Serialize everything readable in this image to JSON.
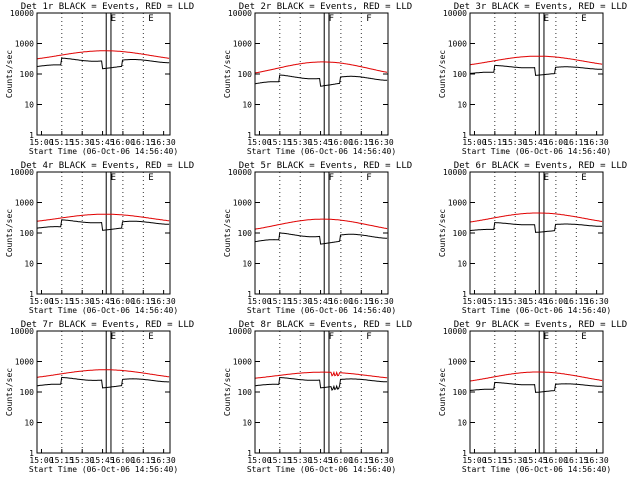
{
  "figure": {
    "xtick_labels": [
      "15:00",
      "15:15",
      "15:30",
      "15:45",
      "16:00",
      "16:15",
      "16:30"
    ],
    "xlabel": "Start Time (06-Oct-06 14:56:40)",
    "ylabel": "Counts/sec",
    "ytick_labels": [
      "1",
      "10",
      "100",
      "1000",
      "10000"
    ],
    "colors": {
      "events": "#000000",
      "lld": "#e00000",
      "axes": "#000000"
    }
  },
  "chart_data": [
    {
      "type": "line",
      "title": "Det 1r BLACK = Events, RED = LLD",
      "marker": "E",
      "xlabel": "Start Time (06-Oct-06 14:56:40)",
      "ylabel": "Counts/sec",
      "yscale": "log",
      "ylim": [
        1,
        10000
      ],
      "xlim_minutes": [
        0,
        98
      ],
      "series": [
        {
          "name": "Events",
          "color": "#000000",
          "kind": "events",
          "base": 220,
          "amp": 0.18,
          "lo": 1
        },
        {
          "name": "LLD",
          "color": "#e00000",
          "kind": "lld",
          "base": 400,
          "amp": 0.16
        }
      ]
    },
    {
      "type": "line",
      "title": "Det 2r BLACK = Events, RED = LLD",
      "marker": "F",
      "xlabel": "Start Time (06-Oct-06 14:56:40)",
      "ylabel": "Counts/sec",
      "yscale": "log",
      "ylim": [
        1,
        10000
      ],
      "xlim_minutes": [
        0,
        98
      ],
      "series": [
        {
          "name": "Events",
          "color": "#000000",
          "kind": "events",
          "base": 60,
          "amp": 0.22,
          "lo": 1
        },
        {
          "name": "LLD",
          "color": "#e00000",
          "kind": "lld",
          "base": 150,
          "amp": 0.22
        }
      ]
    },
    {
      "type": "line",
      "title": "Det 3r BLACK = Events, RED = LLD",
      "marker": "E",
      "xlabel": "Start Time (06-Oct-06 14:56:40)",
      "ylabel": "Counts/sec",
      "yscale": "log",
      "ylim": [
        1,
        10000
      ],
      "xlim_minutes": [
        0,
        98
      ],
      "series": [
        {
          "name": "Events",
          "color": "#000000",
          "kind": "events",
          "base": 130,
          "amp": 0.14,
          "lo": 1
        },
        {
          "name": "LLD",
          "color": "#e00000",
          "kind": "lld",
          "base": 260,
          "amp": 0.17
        }
      ]
    },
    {
      "type": "line",
      "title": "Det 4r BLACK = Events, RED = LLD",
      "marker": "E",
      "xlabel": "Start Time (06-Oct-06 14:56:40)",
      "ylabel": "Counts/sec",
      "yscale": "log",
      "ylim": [
        1,
        10000
      ],
      "xlim_minutes": [
        0,
        98
      ],
      "series": [
        {
          "name": "Events",
          "color": "#000000",
          "kind": "events",
          "base": 180,
          "amp": 0.17,
          "lo": 1
        },
        {
          "name": "LLD",
          "color": "#e00000",
          "kind": "lld",
          "base": 300,
          "amp": 0.14
        }
      ]
    },
    {
      "type": "line",
      "title": "Det 5r BLACK = Events, RED = LLD",
      "marker": "F",
      "xlabel": "Start Time (06-Oct-06 14:56:40)",
      "ylabel": "Counts/sec",
      "yscale": "log",
      "ylim": [
        1,
        10000
      ],
      "xlim_minutes": [
        0,
        98
      ],
      "series": [
        {
          "name": "Events",
          "color": "#000000",
          "kind": "events",
          "base": 65,
          "amp": 0.22,
          "lo": 1
        },
        {
          "name": "LLD",
          "color": "#e00000",
          "kind": "lld",
          "base": 180,
          "amp": 0.2
        }
      ]
    },
    {
      "type": "line",
      "title": "Det 6r BLACK = Events, RED = LLD",
      "marker": "E",
      "xlabel": "Start Time (06-Oct-06 14:56:40)",
      "ylabel": "Counts/sec",
      "yscale": "log",
      "ylim": [
        1,
        10000
      ],
      "xlim_minutes": [
        0,
        98
      ],
      "series": [
        {
          "name": "Events",
          "color": "#000000",
          "kind": "events",
          "base": 150,
          "amp": 0.13,
          "lo": 1
        },
        {
          "name": "LLD",
          "color": "#e00000",
          "kind": "lld",
          "base": 300,
          "amp": 0.18
        }
      ]
    },
    {
      "type": "line",
      "title": "Det 7r BLACK = Events, RED = LLD",
      "marker": "E",
      "xlabel": "Start Time (06-Oct-06 14:56:40)",
      "ylabel": "Counts/sec",
      "yscale": "log",
      "ylim": [
        1,
        10000
      ],
      "xlim_minutes": [
        0,
        98
      ],
      "series": [
        {
          "name": "Events",
          "color": "#000000",
          "kind": "events",
          "base": 200,
          "amp": 0.17,
          "lo": 1
        },
        {
          "name": "LLD",
          "color": "#e00000",
          "kind": "lld",
          "base": 380,
          "amp": 0.15
        }
      ]
    },
    {
      "type": "line",
      "title": "Det 8r BLACK = Events, RED = LLD",
      "marker": "F",
      "xlabel": "Start Time (06-Oct-06 14:56:40)",
      "ylabel": "Counts/sec",
      "yscale": "log",
      "ylim": [
        1,
        10000
      ],
      "xlim_minutes": [
        0,
        98
      ],
      "series": [
        {
          "name": "Events",
          "color": "#000000",
          "kind": "events",
          "base": 200,
          "amp": 0.16,
          "lo": 1,
          "dip": true
        },
        {
          "name": "LLD",
          "color": "#e00000",
          "kind": "lld",
          "base": 340,
          "amp": 0.12,
          "dip": true
        }
      ]
    },
    {
      "type": "line",
      "title": "Det 9r BLACK = Events, RED = LLD",
      "marker": "E",
      "xlabel": "Start Time (06-Oct-06 14:56:40)",
      "ylabel": "Counts/sec",
      "yscale": "log",
      "ylim": [
        1,
        10000
      ],
      "xlim_minutes": [
        0,
        98
      ],
      "series": [
        {
          "name": "Events",
          "color": "#000000",
          "kind": "events",
          "base": 140,
          "amp": 0.14,
          "lo": 1
        },
        {
          "name": "LLD",
          "color": "#e00000",
          "kind": "lld",
          "base": 300,
          "amp": 0.18
        }
      ]
    }
  ]
}
